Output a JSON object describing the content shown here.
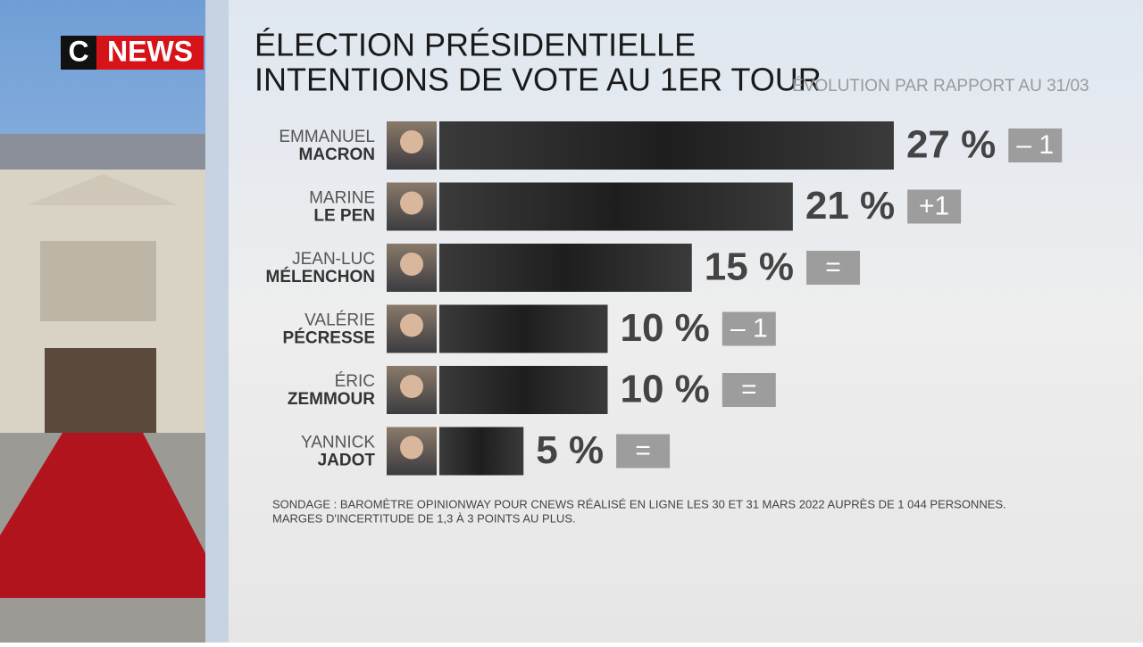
{
  "brand": {
    "left": "C",
    "right": "NEWS"
  },
  "chart_data": {
    "type": "bar",
    "title": [
      "ÉLECTION PRÉSIDENTIELLE",
      "INTENTIONS DE VOTE AU 1ER TOUR"
    ],
    "subtitle": "ÉVOLUTION PAR RAPPORT AU 31/03",
    "categories": [
      [
        "EMMANUEL",
        "MACRON"
      ],
      [
        "MARINE",
        "LE PEN"
      ],
      [
        "JEAN-LUC",
        "MÉLENCHON"
      ],
      [
        "VALÉRIE",
        "PÉCRESSE"
      ],
      [
        "ÉRIC",
        "ZEMMOUR"
      ],
      [
        "YANNICK",
        "JADOT"
      ]
    ],
    "values": [
      27,
      21,
      15,
      10,
      10,
      5
    ],
    "value_labels": [
      "27 %",
      "21 %",
      "15 %",
      "10 %",
      "10 %",
      "5 %"
    ],
    "changes": [
      "– 1",
      "+1",
      "=",
      "– 1",
      "=",
      "="
    ],
    "color": "#2e2e2e",
    "note": [
      "SONDAGE : BAROMÈTRE OPINIONWAY POUR CNEWS RÉALISÉ EN LIGNE LES 30 ET 31 MARS 2022 AUPRÈS DE 1 044 PERSONNES.",
      "MARGES D'INCERTITUDE DE 1,3 À 3 POINTS AU PLUS."
    ]
  }
}
